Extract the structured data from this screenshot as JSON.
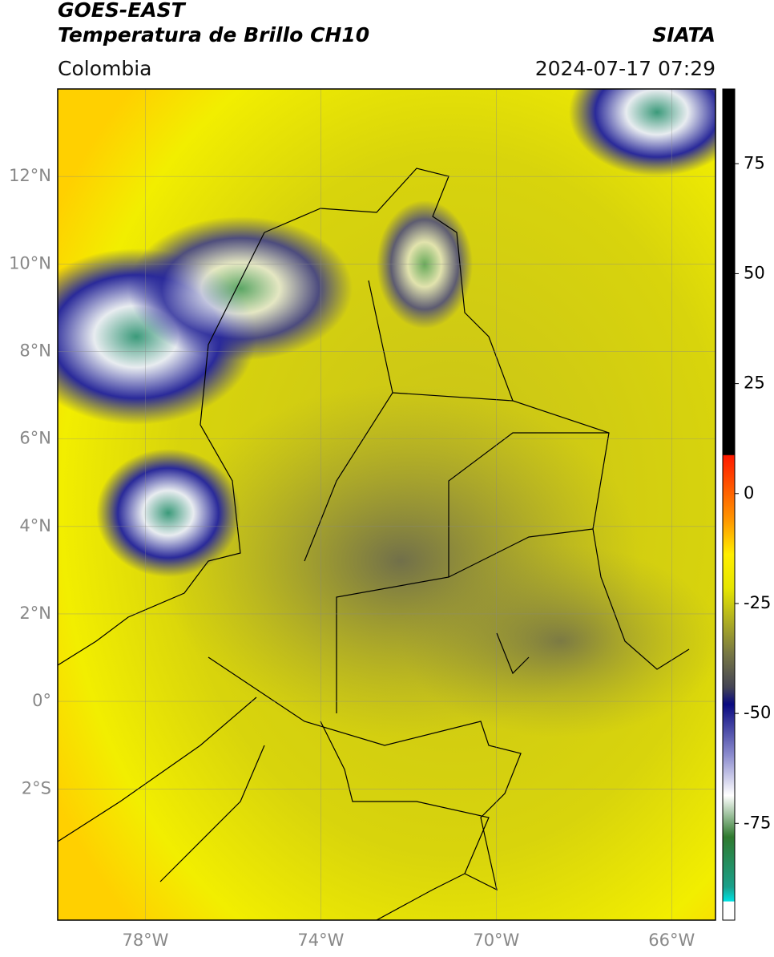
{
  "header": {
    "agency": "GOES-EAST",
    "product": "Temperatura de Brillo CH10",
    "region": "Colombia",
    "source": "SIATA",
    "datetime": "2024-07-17 07:29"
  },
  "map": {
    "xlim": [
      -80,
      -65
    ],
    "ylim": [
      -5,
      14
    ],
    "yticks": [
      {
        "value": 12,
        "label": "12°N"
      },
      {
        "value": 10,
        "label": "10°N"
      },
      {
        "value": 8,
        "label": "8°N"
      },
      {
        "value": 6,
        "label": "6°N"
      },
      {
        "value": 4,
        "label": "4°N"
      },
      {
        "value": 2,
        "label": "2°N"
      },
      {
        "value": 0,
        "label": "0°"
      },
      {
        "value": -2,
        "label": "2°S"
      }
    ],
    "xticks": [
      {
        "value": -78,
        "label": "78°W"
      },
      {
        "value": -74,
        "label": "74°W"
      },
      {
        "value": -70,
        "label": "70°W"
      },
      {
        "value": -66,
        "label": "66°W"
      }
    ]
  },
  "colorbar": {
    "ylim": [
      -97,
      92
    ],
    "yticks": [
      75,
      50,
      25,
      0,
      -25,
      -50,
      -75
    ]
  }
}
